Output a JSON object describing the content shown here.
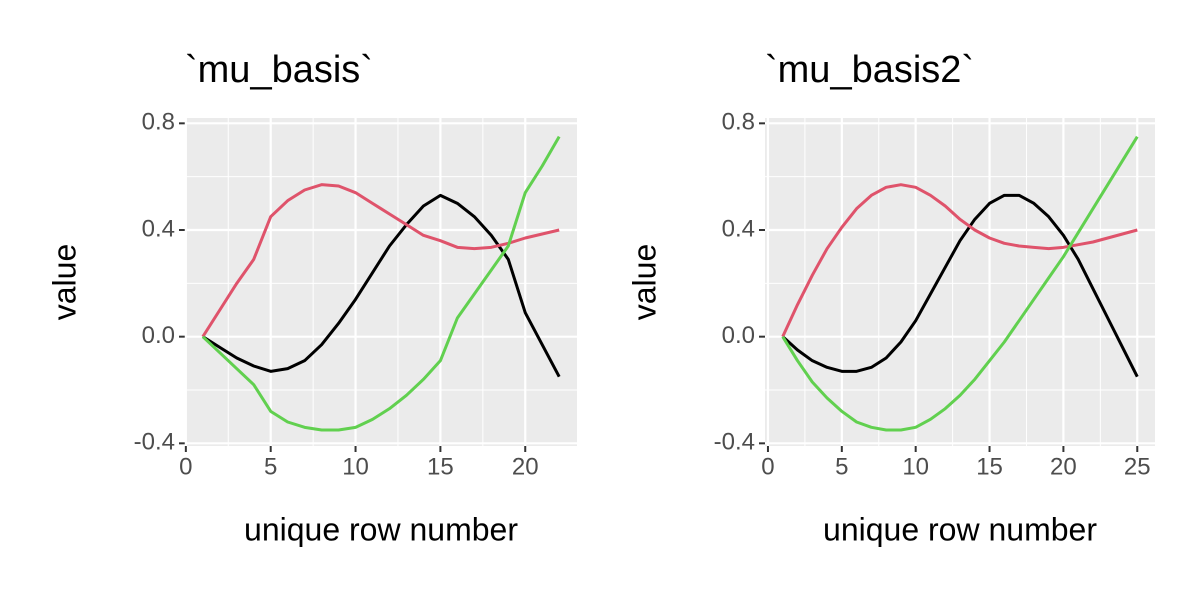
{
  "chart_data": [
    {
      "type": "line",
      "title": "`mu_basis`",
      "x_label": "unique row number",
      "y_label": "value",
      "x": [
        1,
        2,
        3,
        4,
        5,
        6,
        7,
        8,
        9,
        10,
        11,
        12,
        13,
        14,
        15,
        16,
        17,
        18,
        19,
        20,
        21,
        22
      ],
      "series": [
        {
          "color": "#000000",
          "values": [
            0,
            -0.04,
            -0.08,
            -0.11,
            -0.13,
            -0.12,
            -0.09,
            -0.03,
            0.05,
            0.14,
            0.24,
            0.34,
            0.42,
            0.49,
            0.53,
            0.5,
            0.45,
            0.38,
            0.29,
            0.09,
            -0.03,
            -0.15
          ]
        },
        {
          "color": "#df536b",
          "values": [
            0,
            0.1,
            0.2,
            0.29,
            0.45,
            0.51,
            0.55,
            0.57,
            0.565,
            0.54,
            0.5,
            0.46,
            0.42,
            0.38,
            0.36,
            0.335,
            0.33,
            0.335,
            0.35,
            0.37,
            0.385,
            0.4
          ]
        },
        {
          "color": "#61d04f",
          "values": [
            0,
            -0.06,
            -0.12,
            -0.18,
            -0.28,
            -0.32,
            -0.34,
            -0.35,
            -0.35,
            -0.34,
            -0.31,
            -0.27,
            -0.22,
            -0.16,
            -0.09,
            0.07,
            0.16,
            0.25,
            0.34,
            0.54,
            0.64,
            0.75
          ]
        }
      ],
      "xlim": [
        -0.05,
        23.05
      ],
      "xticks": [
        0,
        5,
        10,
        15,
        20
      ],
      "ylim": [
        -0.41,
        0.82
      ],
      "yticks": [
        {
          "value": 0.8,
          "label": "0.8"
        },
        0.4,
        {
          "value": 0,
          "label": "0.0"
        },
        -0.4
      ],
      "grid": true
    },
    {
      "type": "line",
      "title": "`mu_basis2`",
      "x_label": "unique row number",
      "y_label": "value",
      "x": [
        1,
        2,
        3,
        4,
        5,
        6,
        7,
        8,
        9,
        10,
        11,
        12,
        13,
        14,
        15,
        16,
        17,
        18,
        19,
        20,
        21,
        22,
        23,
        24,
        25
      ],
      "series": [
        {
          "color": "#000000",
          "values": [
            0,
            -0.05,
            -0.09,
            -0.115,
            -0.13,
            -0.13,
            -0.115,
            -0.08,
            -0.02,
            0.06,
            0.16,
            0.26,
            0.36,
            0.44,
            0.5,
            0.53,
            0.53,
            0.5,
            0.45,
            0.38,
            0.29,
            0.18,
            0.07,
            -0.04,
            -0.15
          ]
        },
        {
          "color": "#df536b",
          "values": [
            0,
            0.12,
            0.23,
            0.33,
            0.41,
            0.48,
            0.53,
            0.56,
            0.57,
            0.56,
            0.53,
            0.49,
            0.44,
            0.4,
            0.37,
            0.35,
            0.34,
            0.335,
            0.33,
            0.335,
            0.345,
            0.355,
            0.37,
            0.385,
            0.4
          ]
        },
        {
          "color": "#61d04f",
          "values": [
            0,
            -0.09,
            -0.17,
            -0.23,
            -0.28,
            -0.32,
            -0.34,
            -0.35,
            -0.35,
            -0.34,
            -0.31,
            -0.27,
            -0.22,
            -0.16,
            -0.09,
            -0.02,
            0.06,
            0.14,
            0.22,
            0.3,
            0.39,
            0.48,
            0.57,
            0.66,
            0.75
          ]
        }
      ],
      "xlim": [
        -0.2,
        26.2
      ],
      "xticks": [
        0,
        5,
        10,
        15,
        20,
        25
      ],
      "ylim": [
        -0.41,
        0.82
      ],
      "yticks": [
        {
          "value": 0.8,
          "label": "0.8"
        },
        0.4,
        {
          "value": 0,
          "label": "0.0"
        },
        -0.4
      ],
      "grid": true
    }
  ]
}
